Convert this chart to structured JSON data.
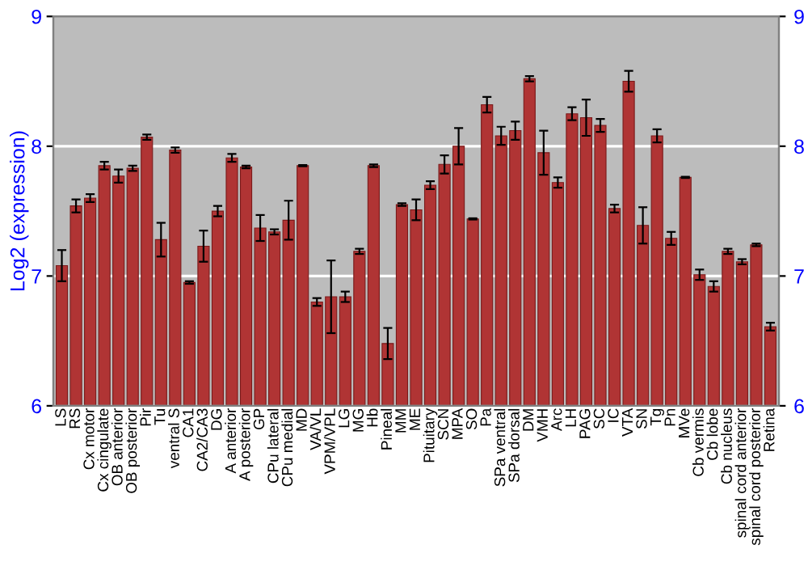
{
  "chart_data": {
    "type": "bar",
    "ylabel": "Log2 (expression)",
    "categories": [
      "LS",
      "RS",
      "Cx motor",
      "Cx cingulate",
      "OB anterior",
      "OB posterior",
      "Pir",
      "Tu",
      "ventral S",
      "CA1",
      "CA2/CA3",
      "DG",
      "A anterior",
      "A posterior",
      "GP",
      "CPu lateral",
      "CPu medial",
      "MD",
      "VA/VL",
      "VPM/VPL",
      "LG",
      "MG",
      "Hb",
      "Pineal",
      "MM",
      "ME",
      "Pituitary",
      "SCN",
      "MPA",
      "SO",
      "Pa",
      "SPa ventral",
      "SPa dorsal",
      "DM",
      "VMH",
      "Arc",
      "LH",
      "PAG",
      "SC",
      "IC",
      "VTA",
      "SN",
      "Tg",
      "Pn",
      "MVe",
      "Cb vermis",
      "Cb lobe",
      "Cb nucleus",
      "spinal cord anterior",
      "spinal cord posterior",
      "Retina"
    ],
    "values": [
      7.08,
      7.54,
      7.6,
      7.85,
      7.77,
      7.83,
      8.07,
      7.28,
      7.97,
      6.95,
      7.23,
      7.5,
      7.91,
      7.84,
      7.37,
      7.34,
      7.43,
      7.85,
      6.8,
      6.84,
      6.84,
      7.19,
      7.85,
      6.48,
      7.55,
      7.51,
      7.7,
      7.86,
      8.0,
      7.44,
      8.32,
      8.08,
      8.12,
      8.52,
      7.95,
      7.72,
      8.25,
      8.22,
      8.16,
      7.52,
      8.5,
      7.39,
      8.08,
      7.29,
      7.76,
      7.01,
      6.92,
      7.19,
      7.11,
      7.24,
      6.61
    ],
    "errors": [
      0.12,
      0.05,
      0.03,
      0.03,
      0.05,
      0.02,
      0.02,
      0.13,
      0.02,
      0.01,
      0.12,
      0.04,
      0.03,
      0.01,
      0.1,
      0.02,
      0.15,
      0.005,
      0.03,
      0.28,
      0.04,
      0.02,
      0.01,
      0.12,
      0.01,
      0.08,
      0.03,
      0.07,
      0.14,
      0.005,
      0.06,
      0.07,
      0.07,
      0.02,
      0.17,
      0.04,
      0.05,
      0.14,
      0.05,
      0.03,
      0.08,
      0.14,
      0.05,
      0.05,
      0.005,
      0.04,
      0.04,
      0.02,
      0.02,
      0.01,
      0.03
    ],
    "color": "#b03434",
    "ylim": [
      6,
      9
    ],
    "yticks": [
      6,
      7,
      8,
      9
    ],
    "y2lim": [
      6,
      9
    ],
    "y2ticks": [
      6,
      7,
      8,
      9
    ],
    "grid": "y"
  }
}
